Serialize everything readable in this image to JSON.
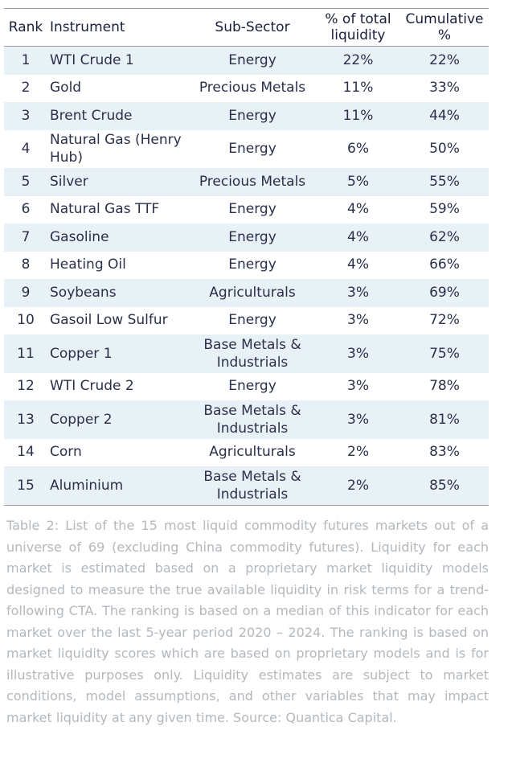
{
  "table": {
    "headers": {
      "rank": "Rank",
      "instrument": "Instrument",
      "sub_sector": "Sub-Sector",
      "pct_total": "% of total liquidity",
      "cumulative": "Cumulative %"
    },
    "rows": [
      {
        "rank": "1",
        "instrument": "WTI Crude 1",
        "sub_sector": "Energy",
        "pct": "22%",
        "cum": "22%"
      },
      {
        "rank": "2",
        "instrument": "Gold",
        "sub_sector": "Precious Metals",
        "pct": "11%",
        "cum": "33%"
      },
      {
        "rank": "3",
        "instrument": "Brent Crude",
        "sub_sector": "Energy",
        "pct": "11%",
        "cum": "44%"
      },
      {
        "rank": "4",
        "instrument": "Natural Gas (Henry Hub)",
        "sub_sector": "Energy",
        "pct": "6%",
        "cum": "50%"
      },
      {
        "rank": "5",
        "instrument": "Silver",
        "sub_sector": "Precious Metals",
        "pct": "5%",
        "cum": "55%"
      },
      {
        "rank": "6",
        "instrument": "Natural Gas TTF",
        "sub_sector": "Energy",
        "pct": "4%",
        "cum": "59%"
      },
      {
        "rank": "7",
        "instrument": "Gasoline",
        "sub_sector": "Energy",
        "pct": "4%",
        "cum": "62%"
      },
      {
        "rank": "8",
        "instrument": "Heating Oil",
        "sub_sector": "Energy",
        "pct": "4%",
        "cum": "66%"
      },
      {
        "rank": "9",
        "instrument": "Soybeans",
        "sub_sector": "Agriculturals",
        "pct": "3%",
        "cum": "69%"
      },
      {
        "rank": "10",
        "instrument": "Gasoil Low Sulfur",
        "sub_sector": "Energy",
        "pct": "3%",
        "cum": "72%"
      },
      {
        "rank": "11",
        "instrument": "Copper 1",
        "sub_sector": "Base Metals & Industrials",
        "pct": "3%",
        "cum": "75%"
      },
      {
        "rank": "12",
        "instrument": "WTI Crude 2",
        "sub_sector": "Energy",
        "pct": "3%",
        "cum": "78%"
      },
      {
        "rank": "13",
        "instrument": "Copper 2",
        "sub_sector": "Base Metals & Industrials",
        "pct": "3%",
        "cum": "81%"
      },
      {
        "rank": "14",
        "instrument": "Corn",
        "sub_sector": "Agriculturals",
        "pct": "2%",
        "cum": "83%"
      },
      {
        "rank": "15",
        "instrument": "Aluminium",
        "sub_sector": "Base Metals & Industrials",
        "pct": "2%",
        "cum": "85%"
      }
    ]
  },
  "caption": "Table 2: List of the 15 most liquid commodity futures markets out of a universe of 69 (excluding China commodity futures). Liquidity for each market is estimated based on a proprietary market liquidity models designed to measure the true available liquidity in risk terms for a trend-following CTA. The ranking is based on a median of this indicator for each market over the last 5-year period 2020 – 2024. The ranking is based on market liquidity scores which are based on proprietary models and is for illustrative purposes only. Liquidity estimates are subject to market conditions, model assumptions, and other variables that may impact market liquidity at any given time. Source: Quantica Capital.",
  "colors": {
    "row_shade": "#e8f1f6",
    "rule": "#9aa0a6",
    "text": "#1a1f3c",
    "caption_text": "#b3b8bd"
  }
}
